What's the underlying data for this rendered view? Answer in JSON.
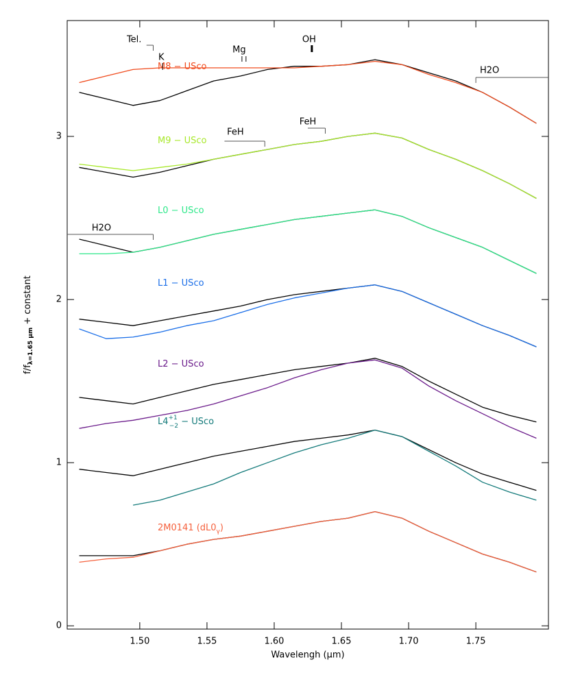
{
  "chart_data": {
    "type": "line",
    "xlabel": "Wavelengh (μm)",
    "ylabel": "f/f",
    "ylabel_sub": "λ=1.65 μm",
    "ylabel_end": " + constant",
    "xlim": [
      1.446,
      1.804
    ],
    "ylim": [
      -0.02,
      3.71
    ],
    "xticks": [
      {
        "value": 1.5,
        "label": "1.50"
      },
      {
        "value": 1.55,
        "label": "1.55"
      },
      {
        "value": 1.6,
        "label": "1.60"
      },
      {
        "value": 1.65,
        "label": "1.65"
      },
      {
        "value": 1.7,
        "label": "1.70"
      },
      {
        "value": 1.75,
        "label": "1.75"
      }
    ],
    "yticks": [
      0,
      1,
      2,
      3
    ],
    "x": [
      1.455,
      1.475,
      1.495,
      1.515,
      1.535,
      1.555,
      1.575,
      1.595,
      1.615,
      1.635,
      1.655,
      1.675,
      1.695,
      1.715,
      1.735,
      1.755,
      1.775,
      1.795
    ],
    "series": [
      {
        "color": "#000000",
        "values": [
          3.27,
          3.23,
          3.19,
          3.22,
          3.28,
          3.34,
          3.37,
          3.41,
          3.43,
          3.43,
          3.44,
          3.47,
          3.44,
          3.39,
          3.34,
          3.27,
          3.18,
          3.08
        ]
      },
      {
        "name": "M8 − USco",
        "color": "#f04a1c",
        "values": [
          3.33,
          3.37,
          3.41,
          3.42,
          3.42,
          3.42,
          3.42,
          3.42,
          3.42,
          3.43,
          3.44,
          3.46,
          3.44,
          3.38,
          3.33,
          3.27,
          3.18,
          3.08
        ]
      },
      {
        "color": "#000000",
        "values": [
          2.81,
          2.78,
          2.75,
          2.78,
          2.82,
          2.86,
          2.89,
          2.92,
          2.95,
          2.97,
          3.0,
          3.02,
          2.99,
          2.92,
          2.86,
          2.79,
          2.71,
          2.62
        ]
      },
      {
        "name": "M9 − USco",
        "color": "#a8e82a",
        "values": [
          2.83,
          2.81,
          2.79,
          2.81,
          2.83,
          2.86,
          2.89,
          2.92,
          2.95,
          2.97,
          3.0,
          3.02,
          2.99,
          2.92,
          2.86,
          2.79,
          2.71,
          2.62
        ]
      },
      {
        "color": "#000000",
        "values": [
          2.37,
          2.33,
          2.29,
          2.32,
          2.36,
          2.4,
          2.43,
          2.46,
          2.49,
          2.51,
          2.53,
          2.55,
          2.51,
          2.44,
          2.38,
          2.32,
          2.24,
          2.16
        ]
      },
      {
        "name": "L0 − USco",
        "color": "#2ee88a",
        "values": [
          2.28,
          2.28,
          2.29,
          2.32,
          2.36,
          2.4,
          2.43,
          2.46,
          2.49,
          2.51,
          2.53,
          2.55,
          2.51,
          2.44,
          2.38,
          2.32,
          2.24,
          2.16
        ]
      },
      {
        "color": "#000000",
        "values": [
          1.88,
          1.86,
          1.84,
          1.87,
          1.9,
          1.93,
          1.96,
          2.0,
          2.03,
          2.05,
          2.07,
          2.09,
          2.05,
          1.98,
          1.91,
          1.84,
          1.78,
          1.71
        ]
      },
      {
        "name": "L1 − USco",
        "color": "#1a6ee8",
        "values": [
          1.82,
          1.76,
          1.77,
          1.8,
          1.84,
          1.87,
          1.92,
          1.97,
          2.01,
          2.04,
          2.07,
          2.09,
          2.05,
          1.98,
          1.91,
          1.84,
          1.78,
          1.71
        ]
      },
      {
        "color": "#000000",
        "values": [
          1.4,
          1.38,
          1.36,
          1.4,
          1.44,
          1.48,
          1.51,
          1.54,
          1.57,
          1.59,
          1.61,
          1.64,
          1.59,
          1.5,
          1.42,
          1.34,
          1.29,
          1.25
        ]
      },
      {
        "name": "L2 − USco",
        "color": "#6a1a8a",
        "values": [
          1.21,
          1.24,
          1.26,
          1.29,
          1.32,
          1.36,
          1.41,
          1.46,
          1.52,
          1.57,
          1.61,
          1.63,
          1.58,
          1.47,
          1.38,
          1.3,
          1.22,
          1.15
        ]
      },
      {
        "color": "#000000",
        "values": [
          0.96,
          0.94,
          0.92,
          0.96,
          1.0,
          1.04,
          1.07,
          1.1,
          1.13,
          1.15,
          1.17,
          1.2,
          1.16,
          1.08,
          1.0,
          0.93,
          0.88,
          0.83
        ]
      },
      {
        "name": "L4",
        "name_sup": "+1",
        "name_sub": "−2",
        "name_end": "  − USco",
        "color": "#137a7a",
        "values": [
          null,
          null,
          0.74,
          0.77,
          0.82,
          0.87,
          0.94,
          1.0,
          1.06,
          1.11,
          1.15,
          1.2,
          1.16,
          1.07,
          0.98,
          0.88,
          0.82,
          0.77
        ]
      },
      {
        "color": "#000000",
        "values": [
          0.43,
          0.43,
          0.43,
          0.46,
          0.5,
          0.53,
          0.55,
          0.58,
          0.61,
          0.64,
          0.66,
          0.7,
          0.66,
          0.58,
          0.51,
          0.44,
          0.39,
          0.33
        ]
      },
      {
        "name": "2M0141 (dL0",
        "name_sub": "γ",
        "name_end": ")",
        "color": "#f5603c",
        "values": [
          0.39,
          0.41,
          0.42,
          0.46,
          0.5,
          0.53,
          0.55,
          0.58,
          0.61,
          0.64,
          0.66,
          0.7,
          0.66,
          0.58,
          0.51,
          0.44,
          0.39,
          0.33
        ]
      }
    ],
    "annotations": [
      {
        "text": "Tel.",
        "x": [
          1.505,
          1.51
        ]
      },
      {
        "text": "K",
        "x": [
          1.517
        ]
      },
      {
        "text": "Mg",
        "x": [
          1.576,
          1.578
        ]
      },
      {
        "text": "OH",
        "x": [
          1.628
        ]
      },
      {
        "text": "FeH",
        "x": [
          1.563,
          1.593
        ]
      },
      {
        "text": "FeH",
        "x": [
          1.625,
          1.638
        ]
      },
      {
        "text": "H2O",
        "x": [
          1.75,
          1.804
        ]
      },
      {
        "text": "H2O",
        "x": [
          1.446,
          1.51
        ]
      }
    ]
  }
}
